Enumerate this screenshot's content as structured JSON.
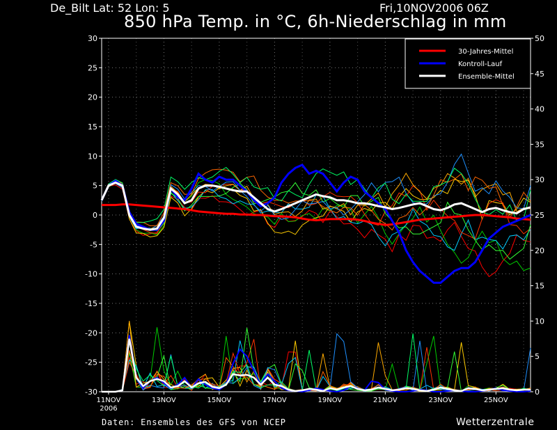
{
  "header": {
    "station": "De_Bilt   Lat: 52 Lon: 5",
    "issue": "Fri,10NOV2006 06Z",
    "title": "850 hPa Temp. in °C, 6h-Niederschlag in mm"
  },
  "footer": {
    "source": "Daten: Ensembles des GFS von NCEP",
    "brand": "Wetterzentrale"
  },
  "chart_data": {
    "type": "line",
    "title": "850 hPa Temp. in °C, 6h-Niederschlag in mm",
    "x_start": "11NOV2006",
    "x_tick_labels": [
      "11NOV",
      "13NOV",
      "15NOV",
      "17NOV",
      "19NOV",
      "21NOV",
      "23NOV",
      "25NOV"
    ],
    "x_tick_sublabel": "2006",
    "step_hours": 6,
    "ylim_left": [
      -30,
      30
    ],
    "yticks_left": [
      -30,
      -25,
      -20,
      -15,
      -10,
      -5,
      0,
      5,
      10,
      15,
      20,
      25,
      30
    ],
    "ylim_right": [
      0,
      50
    ],
    "yticks_right": [
      0,
      5,
      10,
      15,
      20,
      25,
      30,
      35,
      40,
      45,
      50
    ],
    "grid": true,
    "legend_position": "top-right",
    "legend": [
      {
        "label": "30-Jahres-Mittel",
        "color": "#ff0000"
      },
      {
        "label": "Kontroll-Lauf",
        "color": "#0000ff"
      },
      {
        "label": "Ensemble-Mittel",
        "color": "#ffffff"
      }
    ],
    "ensemble_colors": [
      "#ff0000",
      "#00cc00",
      "#ffcc00",
      "#00ccff",
      "#ff3300",
      "#33ff33",
      "#ffaa00",
      "#1e90ff",
      "#ff6600",
      "#00ff66"
    ],
    "temperature": {
      "climate_mean": [
        1.7,
        1.7,
        1.7,
        1.8,
        1.8,
        1.7,
        1.6,
        1.5,
        1.4,
        1.3,
        1.2,
        1.1,
        1.0,
        0.8,
        0.6,
        0.5,
        0.4,
        0.3,
        0.2,
        0.2,
        0.1,
        0.1,
        0.0,
        0.0,
        -0.1,
        -0.2,
        -0.2,
        -0.3,
        -0.4,
        -0.6,
        -0.8,
        -0.9,
        -0.8,
        -0.7,
        -0.7,
        -0.7,
        -0.7,
        -0.8,
        -1.0,
        -1.3,
        -1.5,
        -1.7,
        -1.6,
        -1.4,
        -1.2,
        -1.0,
        -0.8,
        -0.7,
        -0.6,
        -0.5,
        -0.4,
        -0.3,
        -0.2,
        -0.1,
        0.0,
        0.0,
        -0.1,
        -0.2,
        -0.3,
        -0.4,
        -0.6,
        -0.7,
        -0.8
      ],
      "control": [
        2.5,
        5.0,
        5.8,
        5.0,
        0.5,
        -1.5,
        -2.0,
        -2.5,
        -2.5,
        -1.0,
        4.5,
        3.0,
        2.5,
        4.5,
        7.0,
        6.0,
        5.5,
        6.5,
        6.0,
        6.0,
        5.0,
        4.0,
        2.5,
        1.5,
        2.0,
        3.0,
        5.5,
        7.0,
        8.0,
        8.5,
        7.0,
        7.5,
        7.0,
        5.5,
        4.0,
        5.5,
        6.5,
        6.0,
        4.0,
        3.0,
        2.0,
        1.0,
        -1.0,
        -3.0,
        -6.0,
        -8.0,
        -9.5,
        -10.5,
        -11.5,
        -11.5,
        -10.5,
        -9.5,
        -9.0,
        -9.0,
        -8.0,
        -6.0,
        -4.0,
        -3.0,
        -2.0,
        -1.5,
        -1.0,
        -0.5,
        0.0
      ],
      "ensemble_mean": [
        2.5,
        5.0,
        5.5,
        5.0,
        0.0,
        -2.0,
        -2.3,
        -2.5,
        -2.3,
        -0.5,
        4.5,
        3.5,
        2.0,
        2.5,
        4.5,
        5.0,
        5.0,
        4.8,
        4.5,
        4.2,
        4.0,
        4.0,
        3.0,
        2.0,
        1.0,
        0.6,
        1.0,
        1.5,
        2.0,
        2.5,
        3.0,
        3.5,
        3.2,
        3.0,
        2.5,
        2.5,
        2.3,
        2.0,
        2.0,
        1.8,
        1.5,
        1.3,
        1.0,
        1.2,
        1.5,
        1.8,
        2.0,
        1.5,
        1.0,
        0.8,
        1.2,
        1.8,
        2.0,
        1.5,
        1.0,
        0.5,
        1.0,
        1.2,
        0.8,
        0.5,
        0.3,
        1.0,
        1.3
      ]
    },
    "precipitation": {
      "ensemble_mean": [
        0,
        0,
        0,
        0.2,
        7.5,
        2.0,
        0.8,
        1.5,
        1.8,
        1.5,
        0.6,
        0.8,
        1.5,
        0.6,
        1.2,
        1.4,
        0.7,
        0.5,
        1.0,
        2.5,
        2.3,
        2.4,
        2.0,
        1.0,
        2.0,
        1.0,
        0.8,
        0.3,
        0.1,
        0.2,
        0.4,
        0.3,
        0.1,
        0.5,
        0.3,
        0.6,
        0.8,
        0.4,
        0.2,
        0.3,
        0.6,
        0.4,
        0.2,
        0.3,
        0.5,
        0.4,
        0.2,
        0.1,
        0.3,
        0.6,
        0.4,
        0.2,
        0.1,
        0.5,
        0.4,
        0.2,
        0.3,
        0.4,
        0.5,
        0.3,
        0.2,
        0.3,
        0.3
      ],
      "control": [
        0,
        0,
        0,
        0.2,
        8.0,
        2.0,
        0.5,
        1.5,
        2.0,
        1.2,
        0.5,
        1.0,
        2.0,
        0.5,
        1.8,
        1.0,
        0.5,
        0.3,
        1.0,
        4.0,
        6.0,
        5.0,
        3.0,
        1.0,
        2.5,
        1.5,
        0.5,
        0.2,
        0.1,
        0.0,
        0.2,
        0.5,
        0.3,
        0.1,
        0.0,
        0.2,
        0.8,
        0.5,
        0.2,
        1.5,
        1.3,
        0.3,
        0.1,
        0.0,
        0.0,
        0.1,
        0.3,
        0.2,
        0.0,
        0.0,
        0.1,
        0.2,
        0.1,
        0.0,
        0.0,
        0.1,
        0.3,
        0.5,
        0.2,
        0.1,
        0.0,
        0.0,
        0.1
      ]
    }
  }
}
